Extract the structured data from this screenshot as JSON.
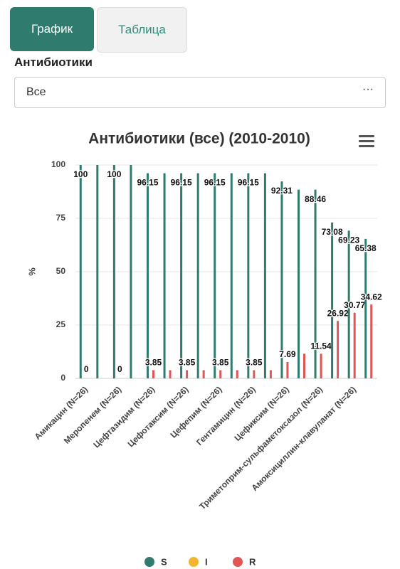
{
  "tabs": [
    "График",
    "Таблица"
  ],
  "filter": {
    "label": "Антибиотики",
    "value": "Все"
  },
  "chart_data": {
    "type": "bar",
    "title": "Антибиотики (все) (2010-2010)",
    "y_label": "%",
    "categories": [
      "Амикацин (N=26)",
      null,
      "Меропенем (N=26)",
      null,
      "Цефтазидим (N=26)",
      null,
      "Цефотаксим (N=26)",
      null,
      "Цефепим (N=26)",
      null,
      "Гентамицин (N=26)",
      null,
      "Цефиксим (N=26)",
      null,
      "Триметоприм-сульфаметоксазол (N=26)",
      null,
      "Амоксициллин-клавуланат (N=26)",
      null
    ],
    "series": [
      {
        "name": "S",
        "color": "#2f7c6e",
        "values": [
          100,
          100,
          100,
          100,
          96.15,
          96.15,
          96.15,
          96.15,
          96.15,
          96.15,
          96.15,
          96.15,
          92.31,
          88.46,
          88.46,
          73.08,
          69.23,
          65.38
        ]
      },
      {
        "name": "I",
        "color": "#f4b52e",
        "values": [
          0,
          0,
          0,
          0,
          0,
          0,
          0,
          0,
          0,
          0,
          0,
          0,
          0,
          0,
          0,
          0,
          0,
          0
        ]
      },
      {
        "name": "R",
        "color": "#e05555",
        "values": [
          0,
          0,
          0,
          0,
          3.85,
          3.85,
          3.85,
          3.85,
          3.85,
          3.85,
          3.85,
          3.85,
          7.69,
          11.54,
          11.54,
          26.92,
          30.77,
          34.62
        ]
      }
    ],
    "ylim": [
      0,
      100
    ],
    "yticks": [
      0,
      25,
      50,
      75,
      100
    ],
    "grid": true
  }
}
